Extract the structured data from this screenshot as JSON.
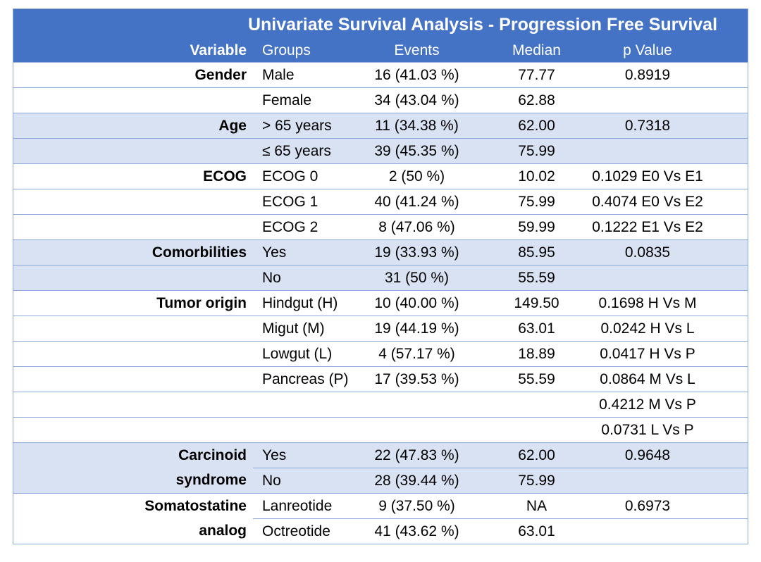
{
  "chart_data": {
    "type": "table",
    "title": "Univariate Survival Analysis - Progression Free Survival",
    "columns": [
      "Variable",
      "Groups",
      "Events",
      "Median",
      "p Value"
    ],
    "rows": [
      {
        "variable": "Gender",
        "group": "Male",
        "events": "16 (41.03 %)",
        "median": "77.77",
        "p_value": "0.8919",
        "shaded": false,
        "merged_divider": false
      },
      {
        "variable": "",
        "group": "Female",
        "events": "34 (43.04 %)",
        "median": "62.88",
        "p_value": "",
        "shaded": false,
        "merged_divider": false
      },
      {
        "variable": "Age",
        "group": "> 65 years",
        "events": "11 (34.38 %)",
        "median": "62.00",
        "p_value": "0.7318",
        "shaded": true,
        "merged_divider": false
      },
      {
        "variable": "",
        "group": "≤ 65 years",
        "events": "39 (45.35 %)",
        "median": "75.99",
        "p_value": "",
        "shaded": true,
        "merged_divider": false
      },
      {
        "variable": "ECOG",
        "group": "ECOG 0",
        "events": "2 (50 %)",
        "median": "10.02",
        "p_value": "0.1029 E0 Vs E1",
        "shaded": false,
        "merged_divider": false
      },
      {
        "variable": "",
        "group": "ECOG 1",
        "events": "40 (41.24 %)",
        "median": "75.99",
        "p_value": "0.4074 E0 Vs E2",
        "shaded": false,
        "merged_divider": false
      },
      {
        "variable": "",
        "group": "ECOG 2",
        "events": "8 (47.06 %)",
        "median": "59.99",
        "p_value": "0.1222 E1 Vs E2",
        "shaded": false,
        "merged_divider": false
      },
      {
        "variable": "Comorbilities",
        "group": "Yes",
        "events": "19 (33.93 %)",
        "median": "85.95",
        "p_value": "0.0835",
        "shaded": true,
        "merged_divider": false
      },
      {
        "variable": "",
        "group": "No",
        "events": "31 (50 %)",
        "median": "55.59",
        "p_value": "",
        "shaded": true,
        "merged_divider": false
      },
      {
        "variable": "Tumor origin",
        "group": "Hindgut (H)",
        "events": "10 (40.00 %)",
        "median": "149.50",
        "p_value": "0.1698 H Vs M",
        "shaded": false,
        "merged_divider": false
      },
      {
        "variable": "",
        "group": "Migut (M)",
        "events": "19 (44.19 %)",
        "median": "63.01",
        "p_value": "0.0242 H Vs L",
        "shaded": false,
        "merged_divider": false
      },
      {
        "variable": "",
        "group": "Lowgut (L)",
        "events": "4 (57.17 %)",
        "median": "18.89",
        "p_value": "0.0417 H Vs P",
        "shaded": false,
        "merged_divider": false
      },
      {
        "variable": "",
        "group": "Pancreas (P)",
        "events": "17 (39.53 %)",
        "median": "55.59",
        "p_value": "0.0864 M Vs L",
        "shaded": false,
        "merged_divider": false
      },
      {
        "variable": "",
        "group": "",
        "events": "",
        "median": "",
        "p_value": "0.4212 M Vs P",
        "shaded": false,
        "merged_divider": false
      },
      {
        "variable": "",
        "group": "",
        "events": "",
        "median": "",
        "p_value": "0.0731 L Vs P",
        "shaded": false,
        "merged_divider": false
      },
      {
        "variable": "Carcinoid",
        "group": "Yes",
        "events": "22 (47.83 %)",
        "median": "62.00",
        "p_value": "0.9648",
        "shaded": true,
        "merged_divider": false
      },
      {
        "variable": "syndrome",
        "group": "No",
        "events": "28 (39.44 %)",
        "median": "75.99",
        "p_value": "",
        "shaded": true,
        "merged_divider": true
      },
      {
        "variable": "Somatostatine",
        "group": "Lanreotide",
        "events": "9 (37.50 %)",
        "median": "NA",
        "p_value": "0.6973",
        "shaded": false,
        "merged_divider": false
      },
      {
        "variable": "analog",
        "group": "Octreotide",
        "events": "41 (43.62 %)",
        "median": "63.01",
        "p_value": "",
        "shaded": false,
        "merged_divider": true
      }
    ]
  },
  "colors": {
    "header_bg": "#4472C4",
    "header_text": "#FFFFFF",
    "shaded_row_bg": "#D9E2F3",
    "border": "#8EAADB",
    "text": "#000000",
    "page_bg": "#FFFFFF"
  }
}
